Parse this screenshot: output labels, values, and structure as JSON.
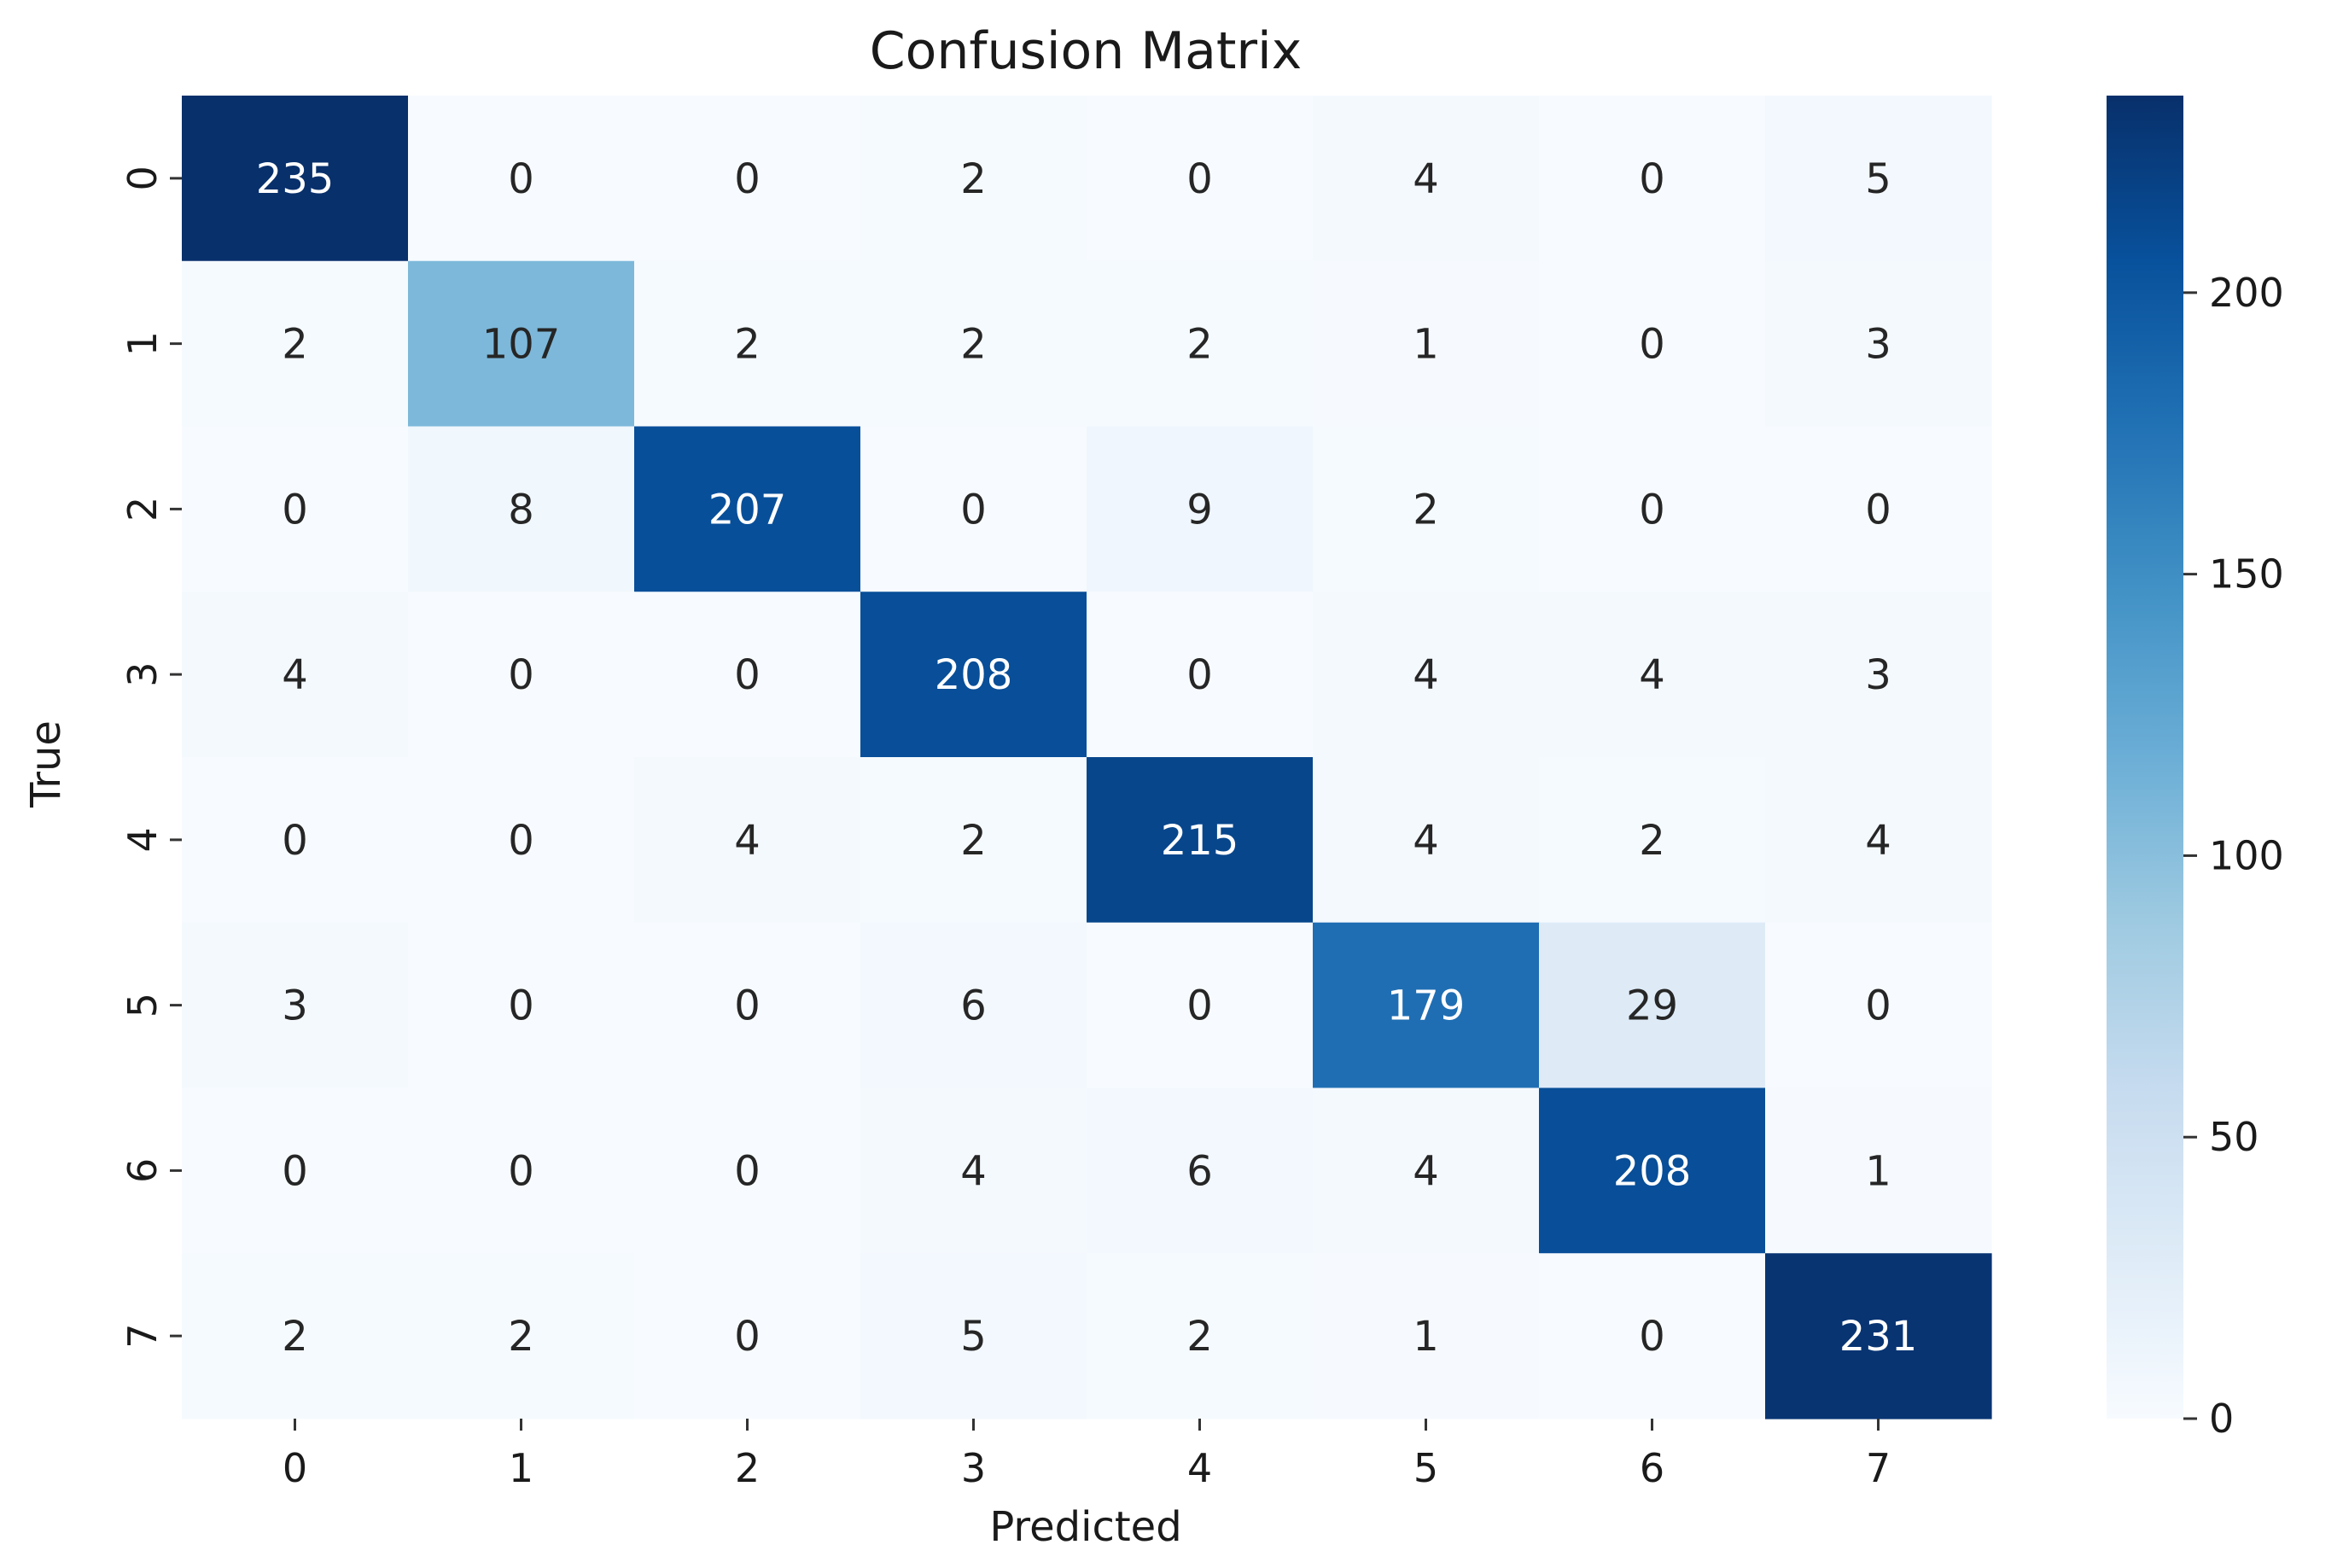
{
  "chart_data": {
    "type": "heatmap",
    "title": "Confusion Matrix",
    "xlabel": "Predicted",
    "ylabel": "True",
    "x_categories": [
      "0",
      "1",
      "2",
      "3",
      "4",
      "5",
      "6",
      "7"
    ],
    "y_categories": [
      "0",
      "1",
      "2",
      "3",
      "4",
      "5",
      "6",
      "7"
    ],
    "values": [
      [
        235,
        0,
        0,
        2,
        0,
        4,
        0,
        5
      ],
      [
        2,
        107,
        2,
        2,
        2,
        1,
        0,
        3
      ],
      [
        0,
        8,
        207,
        0,
        9,
        2,
        0,
        0
      ],
      [
        4,
        0,
        0,
        208,
        0,
        4,
        4,
        3
      ],
      [
        0,
        0,
        4,
        2,
        215,
        4,
        2,
        4
      ],
      [
        3,
        0,
        0,
        6,
        0,
        179,
        29,
        0
      ],
      [
        0,
        0,
        0,
        4,
        6,
        4,
        208,
        1
      ],
      [
        2,
        2,
        0,
        5,
        2,
        1,
        0,
        231
      ]
    ],
    "colormap": "Blues",
    "vmin": 0,
    "vmax": 235,
    "colorbar_ticks": [
      0,
      50,
      100,
      150,
      200
    ],
    "annotations": "cell values"
  }
}
